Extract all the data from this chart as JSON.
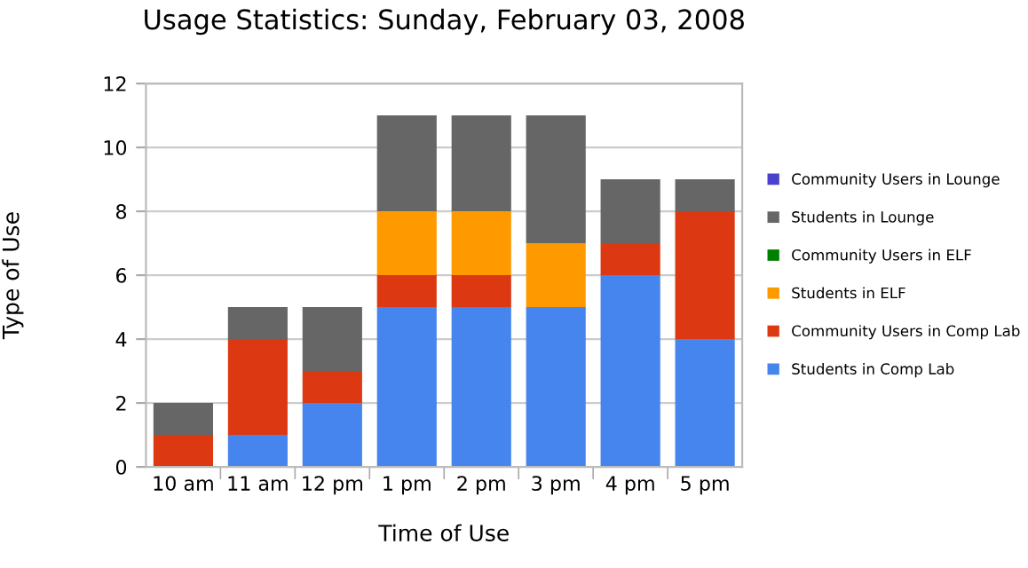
{
  "chart_data": {
    "type": "bar",
    "title": "Usage Statistics: Sunday, February 03, 2008",
    "xlabel": "Time of Use",
    "ylabel": "Type of Use",
    "categories": [
      "10 am",
      "11 am",
      "12 pm",
      "1 pm",
      "2 pm",
      "3 pm",
      "4 pm",
      "5 pm"
    ],
    "stacked": true,
    "ylim": [
      0,
      12
    ],
    "yticks": [
      0,
      2,
      4,
      6,
      8,
      10,
      12
    ],
    "grid": "y",
    "legend": "right",
    "series": [
      {
        "name": "Students in Comp Lab",
        "color": "#4684ee",
        "values": [
          0,
          1,
          2,
          5,
          5,
          5,
          6,
          4
        ]
      },
      {
        "name": "Community Users in Comp Lab",
        "color": "#dc3912",
        "values": [
          1,
          3,
          1,
          1,
          1,
          0,
          1,
          4
        ]
      },
      {
        "name": "Students in ELF",
        "color": "#ff9900",
        "values": [
          0,
          0,
          0,
          2,
          2,
          2,
          0,
          0
        ]
      },
      {
        "name": "Community Users in ELF",
        "color": "#008000",
        "values": [
          0,
          0,
          0,
          0,
          0,
          0,
          0,
          0
        ]
      },
      {
        "name": "Students in Lounge",
        "color": "#666666",
        "values": [
          1,
          1,
          2,
          3,
          3,
          4,
          2,
          1
        ]
      },
      {
        "name": "Community Users in Lounge",
        "color": "#4942cc",
        "values": [
          0,
          0,
          0,
          0,
          0,
          0,
          0,
          0
        ]
      }
    ]
  }
}
